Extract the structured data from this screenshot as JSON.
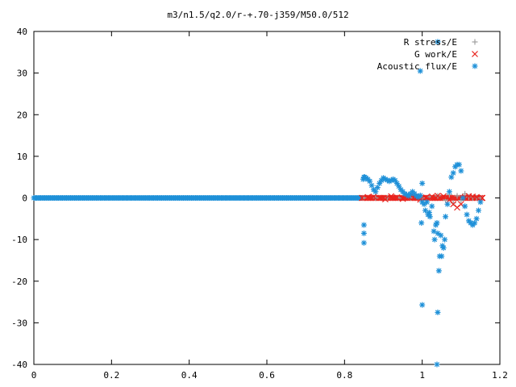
{
  "chart_data": {
    "type": "scatter",
    "title": "m3/n1.5/q2.0/r-+.70-j359/M50.0/512",
    "xlabel": "",
    "ylabel": "",
    "xlim": [
      0,
      1.2
    ],
    "ylim": [
      -40,
      40
    ],
    "xticks": [
      "0",
      "0.2",
      "0.4",
      "0.6",
      "0.8",
      "1",
      "1.2"
    ],
    "yticks": [
      "40",
      "30",
      "20",
      "10",
      "0",
      "-10",
      "-20",
      "-30",
      "-40"
    ],
    "xtick_values": [
      0,
      0.2,
      0.4,
      0.6,
      0.8,
      1.0,
      1.2
    ],
    "ytick_values": [
      40,
      30,
      20,
      10,
      0,
      -10,
      -20,
      -30,
      -40
    ],
    "grid": false,
    "legend_position": "top-right",
    "series": [
      {
        "name": "R stress/E",
        "marker": "plus",
        "color": "#a0a0a0",
        "x": [
          0.85,
          0.88,
          0.91,
          0.94,
          0.97,
          1.0,
          1.02,
          1.04,
          1.06,
          1.07,
          1.08,
          1.09,
          1.1,
          1.11,
          1.12,
          1.13,
          1.14,
          1.15
        ],
        "y": [
          0,
          0,
          0,
          0,
          0,
          0,
          0.3,
          0.5,
          -0.5,
          0.8,
          -1.2,
          0.5,
          -0.6,
          1.0,
          0.2,
          0,
          0,
          0
        ]
      },
      {
        "name": "G work/E",
        "marker": "x",
        "color": "#e8221c",
        "x": [
          0.845,
          0.86,
          0.875,
          0.89,
          0.905,
          0.92,
          0.935,
          0.95,
          0.965,
          0.98,
          0.995,
          1.01,
          1.025,
          1.04,
          1.055,
          1.07,
          1.08,
          1.09,
          1.1,
          1.11,
          1.12,
          1.13,
          1.14,
          1.155
        ],
        "y": [
          0,
          0.2,
          0.3,
          0,
          -0.3,
          0.4,
          0.1,
          -0.2,
          0.2,
          0.3,
          -0.4,
          0.1,
          0.3,
          0.5,
          0.4,
          -0.5,
          -1.5,
          -2.3,
          -1.5,
          0.2,
          0.4,
          0.3,
          0.2,
          0
        ]
      },
      {
        "name": "Acoustic flux/E",
        "marker": "star",
        "color": "#1e90d8",
        "x": [
          0.848,
          0.85,
          0.852,
          0.855,
          0.86,
          0.865,
          0.87,
          0.875,
          0.88,
          0.885,
          0.89,
          0.895,
          0.9,
          0.905,
          0.91,
          0.915,
          0.92,
          0.925,
          0.93,
          0.935,
          0.94,
          0.945,
          0.95,
          0.955,
          0.96,
          0.965,
          0.97,
          0.975,
          0.98,
          0.985,
          0.99,
          0.995,
          0.998,
          1.0,
          1.005,
          1.008,
          1.012,
          1.015,
          1.018,
          1.02,
          1.025,
          1.03,
          1.032,
          1.035,
          1.038,
          1.04,
          1.043,
          1.045,
          1.048,
          1.05,
          1.052,
          1.055,
          1.058,
          1.06,
          1.065,
          1.07,
          1.075,
          1.08,
          1.085,
          1.09,
          1.095,
          1.1,
          1.105,
          1.11,
          1.115,
          1.12,
          1.125,
          1.13,
          1.135,
          1.14,
          1.145,
          1.15,
          0.85,
          0.85,
          0.85,
          0.995,
          1.04,
          1.04,
          1.038,
          1.0,
          1.0
        ],
        "y": [
          4.5,
          5.0,
          5.0,
          4.8,
          4.5,
          4.0,
          3.0,
          2.0,
          1.5,
          2.5,
          3.5,
          4.2,
          4.8,
          4.5,
          4.3,
          4.0,
          4.2,
          4.5,
          4.2,
          3.5,
          2.8,
          2.0,
          1.5,
          1.0,
          0.8,
          0.5,
          1.0,
          1.5,
          1.0,
          0.5,
          0.2,
          0.6,
          -6.0,
          -25.7,
          -1.5,
          -3.0,
          -1.0,
          -4.0,
          -3.5,
          -4.5,
          -2.0,
          -8.0,
          -10.0,
          -6.5,
          -6.0,
          -8.5,
          -17.5,
          -14.0,
          -9.0,
          -14.0,
          -11.5,
          -12.0,
          -10.0,
          -4.5,
          -1.5,
          1.5,
          5.0,
          6.0,
          7.5,
          8.0,
          8.0,
          6.5,
          0.0,
          -2.0,
          -4.0,
          -5.5,
          -6.0,
          -6.5,
          -6.0,
          -5.0,
          -3.0,
          -1.0,
          -6.5,
          -8.5,
          -10.8,
          30.5,
          37.5,
          -27.5,
          -40.0,
          3.5,
          -1.0
        ]
      }
    ]
  }
}
